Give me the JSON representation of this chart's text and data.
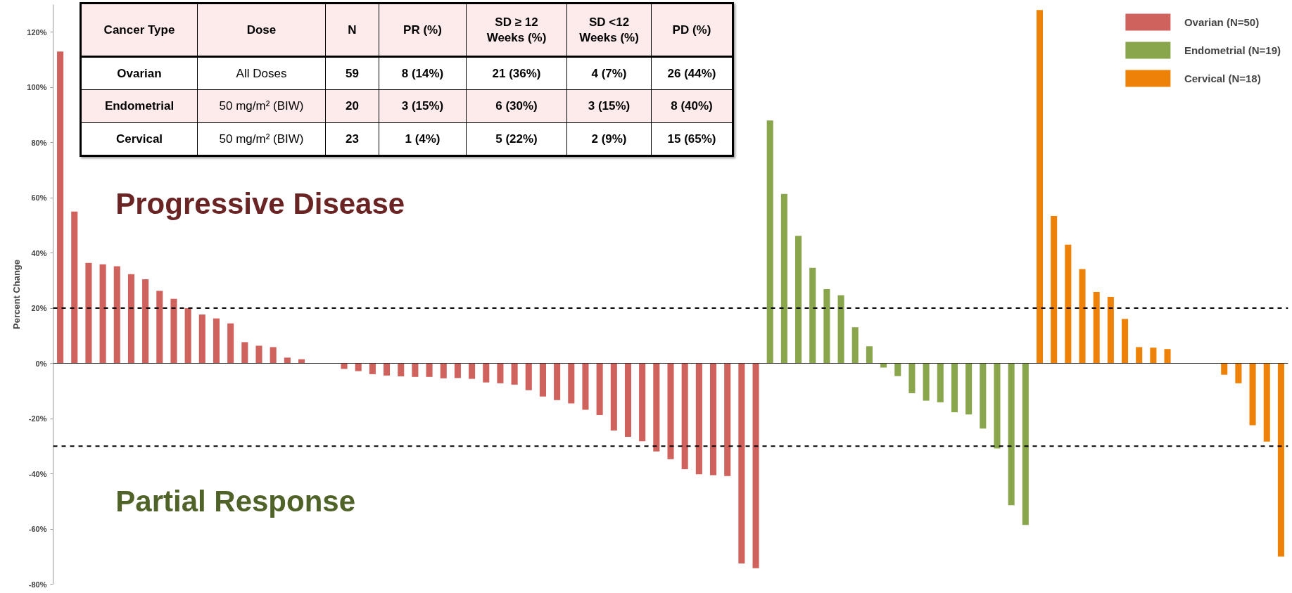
{
  "chart_data": {
    "type": "bar",
    "ylabel": "Percent Change",
    "categories": [
      null,
      null,
      null,
      null,
      null,
      null,
      null,
      null,
      null,
      null,
      null,
      null,
      null,
      null,
      null,
      null,
      null,
      null,
      null,
      null,
      null,
      null,
      null,
      null,
      null,
      null,
      null,
      null,
      null,
      null,
      null,
      null,
      null,
      null,
      null,
      null,
      null,
      null,
      null,
      null,
      null,
      null,
      null,
      null,
      null,
      null,
      null,
      null,
      null,
      null,
      null,
      null,
      null,
      null,
      null,
      null,
      null,
      null,
      null,
      null,
      null,
      null,
      null,
      null,
      null,
      null,
      null,
      null,
      null,
      null,
      null,
      null,
      null,
      null,
      null,
      null,
      null,
      null,
      null,
      null,
      null,
      null,
      null,
      null,
      null,
      null,
      null
    ],
    "series": [
      {
        "name": "Ovarian (N=50)",
        "color": "#d0625e",
        "values": [
          113,
          55,
          36.4,
          35.9,
          35.2,
          32.3,
          30.5,
          26.3,
          23.4,
          20,
          17.7,
          16.3,
          14.5,
          7.7,
          6.4,
          5.9,
          2.1,
          1.5,
          0,
          0,
          -2,
          -2.8,
          -3.9,
          -4.4,
          -4.7,
          -4.9,
          -4.9,
          -5.4,
          -5.3,
          -5.6,
          -6.9,
          -7.2,
          -7.7,
          -9.7,
          -12,
          -13.3,
          -14.5,
          -16.8,
          -18.7,
          -24.3,
          -26.6,
          -28.2,
          -31.9,
          -34.7,
          -38.3,
          -40.2,
          -40.5,
          -40.8,
          -72.5,
          -74.2,
          null,
          null,
          null,
          null,
          null,
          null,
          null,
          null,
          null,
          null,
          null,
          null,
          null,
          null,
          null,
          null,
          null,
          null,
          null,
          null,
          null,
          null,
          null,
          null,
          null,
          null,
          null,
          null,
          null,
          null,
          null,
          null,
          null,
          null,
          null,
          null,
          null
        ]
      },
      {
        "name": "Endometrial (N=19)",
        "color": "#8aa64c",
        "values": [
          null,
          null,
          null,
          null,
          null,
          null,
          null,
          null,
          null,
          null,
          null,
          null,
          null,
          null,
          null,
          null,
          null,
          null,
          null,
          null,
          null,
          null,
          null,
          null,
          null,
          null,
          null,
          null,
          null,
          null,
          null,
          null,
          null,
          null,
          null,
          null,
          null,
          null,
          null,
          null,
          null,
          null,
          null,
          null,
          null,
          null,
          null,
          null,
          null,
          null,
          88,
          61.4,
          46.2,
          34.6,
          26.9,
          24.7,
          13.1,
          6.2,
          -1.5,
          -4.6,
          -10.8,
          -13.5,
          -14.1,
          -17.7,
          -18.5,
          -23.6,
          -30.8,
          -51.4,
          -58.5,
          null,
          null,
          null,
          null,
          null,
          null,
          null,
          null,
          null,
          null,
          null,
          null,
          null,
          null,
          null,
          null,
          null,
          null
        ]
      },
      {
        "name": "Cervical (N=18)",
        "color": "#ee8208",
        "values": [
          null,
          null,
          null,
          null,
          null,
          null,
          null,
          null,
          null,
          null,
          null,
          null,
          null,
          null,
          null,
          null,
          null,
          null,
          null,
          null,
          null,
          null,
          null,
          null,
          null,
          null,
          null,
          null,
          null,
          null,
          null,
          null,
          null,
          null,
          null,
          null,
          null,
          null,
          null,
          null,
          null,
          null,
          null,
          null,
          null,
          null,
          null,
          null,
          null,
          null,
          null,
          null,
          null,
          null,
          null,
          null,
          null,
          null,
          null,
          null,
          null,
          null,
          null,
          null,
          null,
          null,
          null,
          null,
          null,
          128,
          53.4,
          43,
          34.2,
          25.9,
          24.1,
          16.1,
          5.9,
          5.7,
          5.2,
          0,
          0,
          0,
          -4.1,
          -7.2,
          -22.4,
          -28.3,
          -70
        ]
      }
    ],
    "ylim": [
      -80,
      130
    ],
    "yticks": [
      {
        "value": -80,
        "label": "-80%"
      },
      {
        "value": -60,
        "label": "-60%"
      },
      {
        "value": -40,
        "label": "-40%"
      },
      {
        "value": -20,
        "label": "-20%"
      },
      {
        "value": 0,
        "label": "0%"
      },
      {
        "value": 20,
        "label": "20%"
      },
      {
        "value": 40,
        "label": "40%"
      },
      {
        "value": 60,
        "label": "60%"
      },
      {
        "value": 80,
        "label": "80%"
      },
      {
        "value": 100,
        "label": "100%"
      },
      {
        "value": 120,
        "label": "120%"
      }
    ],
    "ref_lines": [
      {
        "axis": "y",
        "value": 20,
        "color": "#000000",
        "line_style": "dashed"
      },
      {
        "axis": "y",
        "value": -30,
        "color": "#000000",
        "line_style": "dashed"
      }
    ],
    "annotations": [
      "Progressive Disease",
      "Partial Response",
      "Cancer Type",
      "Dose",
      "N",
      "PR (%)",
      "SD ≥ 12\nWeeks (%)",
      "SD <12\nWeeks (%)",
      "PD (%)",
      "Ovarian",
      "All Doses",
      "59",
      "8 (14%)",
      "21 (36%)",
      "4 (7%)",
      "26 (44%)",
      "Endometrial",
      "50 mg/m² (BIW)",
      "20",
      "3 (15%)",
      "6 (30%)",
      "3 (15%)",
      "8 (40%)",
      "Cervical",
      "50 mg/m² (BIW)",
      "23",
      "1 (4%)",
      "5 (22%)",
      "2 (9%)",
      "15 (65%)"
    ],
    "grid": false,
    "legend": "top right",
    "tick_labels": "y"
  }
}
